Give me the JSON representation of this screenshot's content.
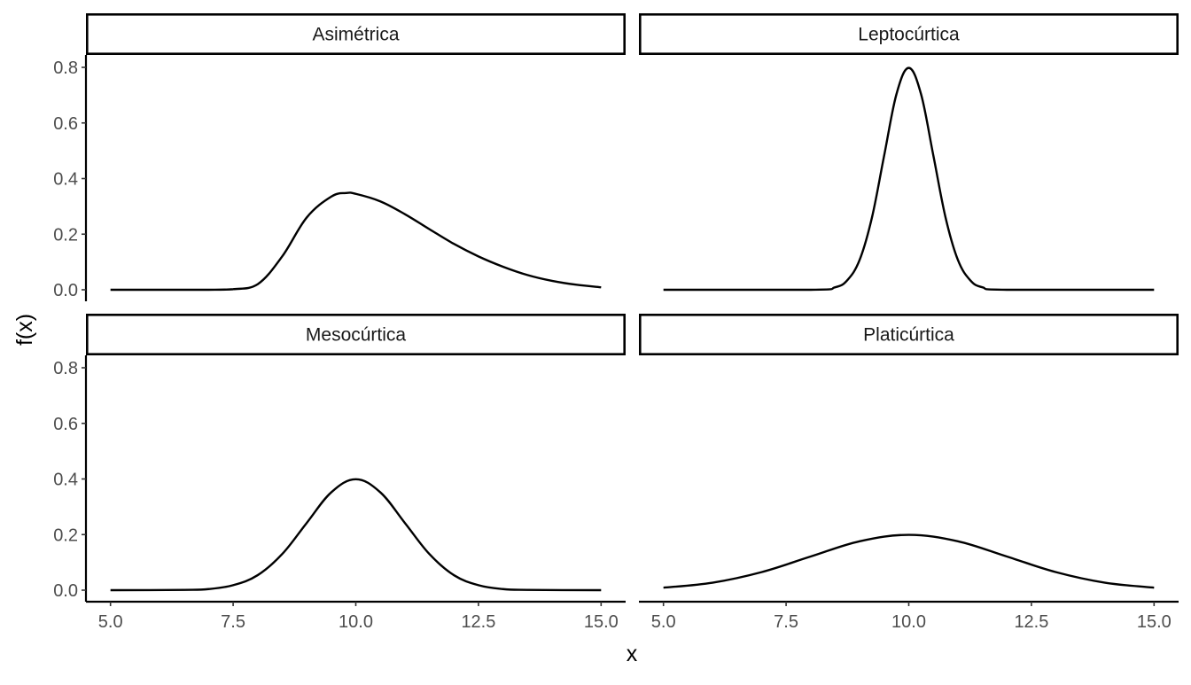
{
  "chart_data": {
    "type": "line",
    "layout": "facet-grid-2x2",
    "xlabel": "x",
    "ylabel": "f(x)",
    "xlim": [
      4.5,
      15.5
    ],
    "ylim": [
      0,
      0.8
    ],
    "x_ticks": [
      5.0,
      7.5,
      10.0,
      12.5,
      15.0
    ],
    "x_tick_labels": [
      "5.0",
      "7.5",
      "10.0",
      "12.5",
      "15.0"
    ],
    "y_ticks": [
      0.0,
      0.2,
      0.4,
      0.6,
      0.8
    ],
    "y_tick_labels": [
      "0.0",
      "0.2",
      "0.4",
      "0.6",
      "0.8"
    ],
    "grid": false,
    "line_color": "#000000",
    "panels": [
      {
        "title": "Asimétrica",
        "x": [
          5.0,
          6.0,
          7.0,
          7.5,
          8.0,
          8.5,
          9.0,
          9.5,
          9.8,
          10.0,
          10.5,
          11.0,
          11.5,
          12.0,
          12.5,
          13.0,
          13.5,
          14.0,
          14.5,
          15.0
        ],
        "y": [
          0.0,
          0.0,
          0.0,
          0.002,
          0.02,
          0.12,
          0.26,
          0.335,
          0.348,
          0.345,
          0.318,
          0.272,
          0.218,
          0.165,
          0.12,
          0.083,
          0.053,
          0.032,
          0.018,
          0.009
        ]
      },
      {
        "title": "Leptocúrtica",
        "x": [
          5.0,
          8.0,
          8.5,
          8.75,
          9.0,
          9.25,
          9.5,
          9.75,
          10.0,
          10.25,
          10.5,
          10.75,
          11.0,
          11.25,
          11.5,
          12.0,
          15.0
        ],
        "y": [
          0.0,
          0.0,
          0.009,
          0.035,
          0.108,
          0.26,
          0.484,
          0.704,
          0.798,
          0.704,
          0.484,
          0.26,
          0.108,
          0.035,
          0.009,
          0.0,
          0.0
        ]
      },
      {
        "title": "Mesocúrtica",
        "x": [
          5.0,
          6.5,
          7.0,
          7.5,
          8.0,
          8.5,
          9.0,
          9.5,
          10.0,
          10.5,
          11.0,
          11.5,
          12.0,
          12.5,
          13.0,
          13.5,
          15.0
        ],
        "y": [
          0.0,
          0.001,
          0.004,
          0.018,
          0.054,
          0.13,
          0.242,
          0.352,
          0.399,
          0.352,
          0.242,
          0.13,
          0.054,
          0.018,
          0.004,
          0.001,
          0.0
        ]
      },
      {
        "title": "Platicúrtica",
        "x": [
          5.0,
          6.0,
          7.0,
          8.0,
          9.0,
          10.0,
          11.0,
          12.0,
          13.0,
          14.0,
          15.0
        ],
        "y": [
          0.009,
          0.027,
          0.065,
          0.121,
          0.176,
          0.199,
          0.176,
          0.121,
          0.065,
          0.027,
          0.009
        ]
      }
    ]
  }
}
